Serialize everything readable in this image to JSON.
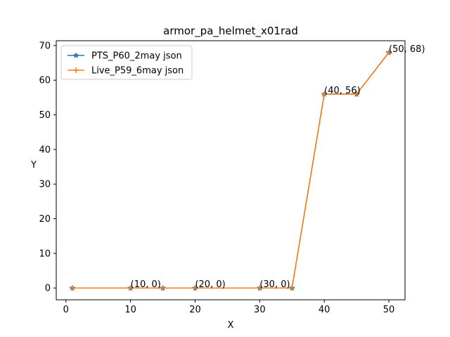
{
  "chart_data": {
    "type": "line",
    "title": "armor_pa_helmet_x01rad",
    "xlabel": "X",
    "ylabel": "Y",
    "xlim": [
      -1.5,
      52.5
    ],
    "ylim": [
      -3.4,
      71.4
    ],
    "xticks": [
      0,
      10,
      20,
      30,
      40,
      50
    ],
    "yticks": [
      0,
      10,
      20,
      30,
      40,
      50,
      60,
      70
    ],
    "grid": false,
    "legend_position": "top-left",
    "series": [
      {
        "name": "PTS_P60_2may json",
        "color": "#1f77b4",
        "marker": "star",
        "x": [
          1,
          10,
          15,
          20,
          30,
          35,
          40,
          45,
          50
        ],
        "y": [
          0,
          0,
          0,
          0,
          0,
          0,
          56,
          56,
          68
        ]
      },
      {
        "name": "Live_P59_6may json",
        "color": "#ff7f0e",
        "marker": "plus",
        "x": [
          1,
          10,
          15,
          20,
          30,
          35,
          40,
          45,
          50
        ],
        "y": [
          0,
          0,
          0,
          0,
          0,
          0,
          56,
          56,
          68
        ]
      }
    ],
    "annotations": [
      {
        "x": 10,
        "y": 0,
        "text": "(10, 0)"
      },
      {
        "x": 20,
        "y": 0,
        "text": "(20, 0)"
      },
      {
        "x": 30,
        "y": 0,
        "text": "(30, 0)"
      },
      {
        "x": 40,
        "y": 56,
        "text": "(40, 56)"
      },
      {
        "x": 50,
        "y": 68,
        "text": "(50, 68)"
      }
    ]
  }
}
